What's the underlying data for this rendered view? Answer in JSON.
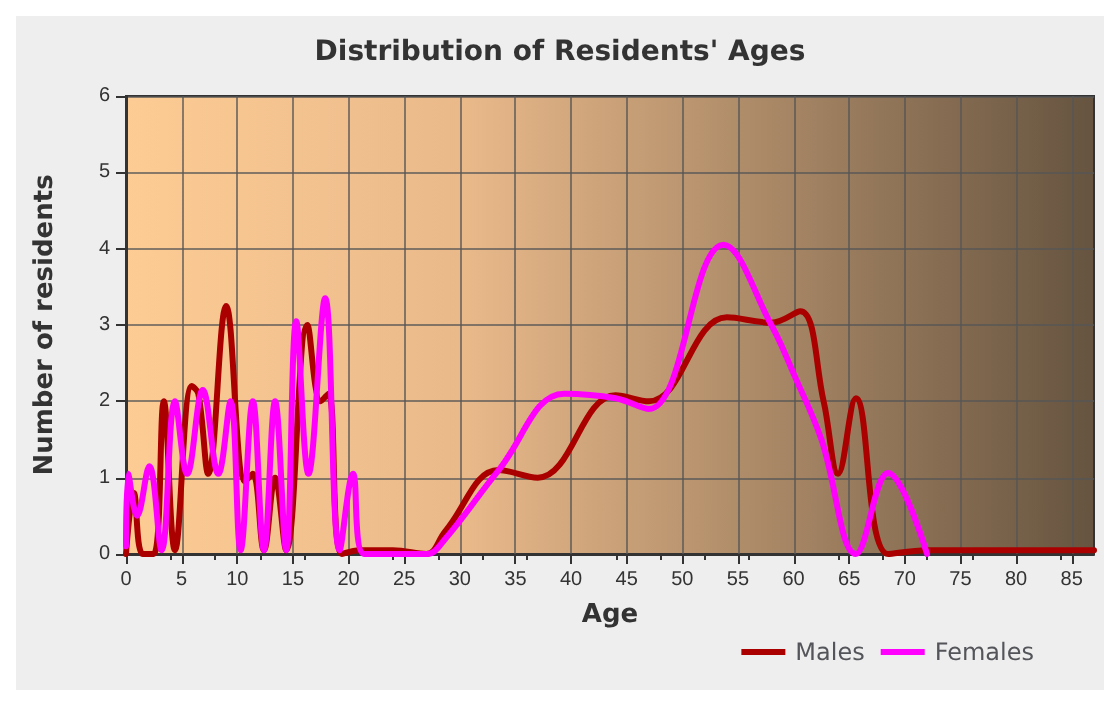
{
  "chart_data": {
    "type": "line",
    "title": "Distribution of Residents' Ages",
    "xlabel": "Age",
    "ylabel": "Number of residents",
    "xlim": [
      0,
      87
    ],
    "xticks": [
      0,
      5,
      10,
      15,
      20,
      25,
      30,
      35,
      40,
      45,
      50,
      55,
      60,
      65,
      70,
      75,
      80,
      85
    ],
    "ylim": [
      0,
      6
    ],
    "yticks": [
      0,
      1,
      2,
      3,
      4,
      5,
      6
    ],
    "grid": true,
    "legend": "bottom right",
    "marker": "none",
    "line_style": "solid",
    "series": [
      {
        "name": "Males",
        "color": "#aa0000",
        "x": [
          0,
          0.7,
          1.5,
          2.5,
          3.4,
          4.4,
          5.9,
          6.5,
          7.4,
          9,
          10.7,
          11.4,
          12.4,
          13.4,
          14.4,
          16.3,
          17.5,
          18.2,
          19.4,
          21,
          24,
          27,
          28.7,
          33.5,
          37,
          44,
          47,
          54,
          58,
          60.6,
          62.7,
          64,
          65.6,
          68.5,
          72,
          80,
          87
        ],
        "values": [
          0,
          0.8,
          0,
          0,
          2,
          0.05,
          2.2,
          2.1,
          1.05,
          3.25,
          0.95,
          1.05,
          0.05,
          1,
          0.05,
          3,
          2,
          2.1,
          0,
          0.05,
          0.05,
          0,
          0.3,
          1.1,
          1,
          2.08,
          2,
          3.1,
          3.03,
          3.18,
          2,
          1.05,
          2.04,
          0,
          0.05,
          0.05,
          0.05
        ]
      },
      {
        "name": "Females",
        "color": "#ff00ff",
        "x": [
          0,
          0.2,
          1,
          2.1,
          3.2,
          4.4,
          5.5,
          6.9,
          8.3,
          9.4,
          10.3,
          11.4,
          12.4,
          13.4,
          14.4,
          15.3,
          16.4,
          17.9,
          19.2,
          20.4,
          21.4,
          24,
          27,
          28.7,
          33.5,
          39.4,
          44,
          47,
          53.7,
          58,
          60.1,
          62.5,
          65.6,
          68.5,
          72
        ],
        "values": [
          0.1,
          1.05,
          0.5,
          1.15,
          0.05,
          2,
          1.05,
          2.15,
          1.05,
          2,
          0.05,
          2,
          0.05,
          2,
          0.05,
          3.05,
          1.05,
          3.35,
          0.05,
          1.05,
          0,
          0,
          0,
          0.2,
          1.1,
          2.1,
          2.04,
          1.9,
          4.05,
          3,
          2.33,
          1.5,
          0,
          1.06,
          0
        ]
      }
    ]
  }
}
